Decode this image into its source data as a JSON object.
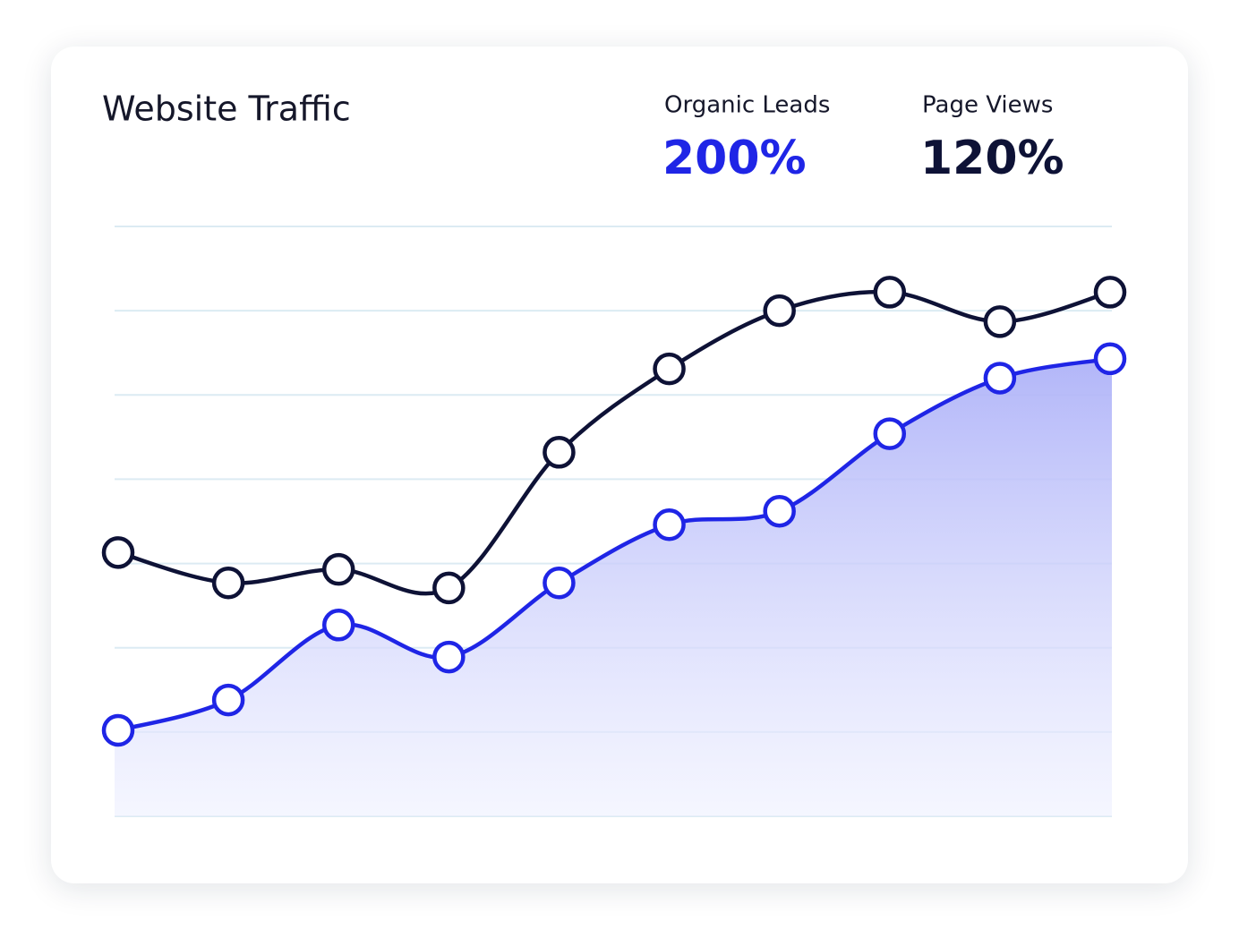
{
  "chart_data": {
    "type": "line",
    "title": "Website Traffic",
    "categories": [
      null,
      null,
      null,
      null,
      null,
      null,
      null,
      null,
      null,
      null
    ],
    "series": [
      {
        "name": "Organic Leads",
        "summary_label": "200%",
        "color": "#1f25e6",
        "area": true,
        "values": [
          1.02,
          1.38,
          2.27,
          1.89,
          2.77,
          3.46,
          3.62,
          4.54,
          5.2,
          5.43
        ]
      },
      {
        "name": "Page Views",
        "summary_label": "120%",
        "color": "#0e1236",
        "area": false,
        "values": [
          3.13,
          2.77,
          2.93,
          2.71,
          4.32,
          5.31,
          6.0,
          6.22,
          5.87,
          6.22
        ]
      }
    ],
    "ylim": [
      0,
      7
    ],
    "yticks": [
      0,
      1,
      2,
      3,
      4,
      5,
      6,
      7
    ],
    "grid": true
  }
}
